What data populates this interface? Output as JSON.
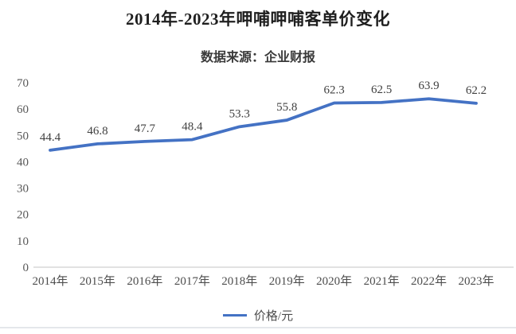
{
  "chart_data": {
    "type": "line",
    "title": "2014年-2023年呷哺呷哺客单价变化",
    "subtitle": "数据来源：企业财报",
    "categories": [
      "2014年",
      "2015年",
      "2016年",
      "2017年",
      "2018年",
      "2019年",
      "2020年",
      "2021年",
      "2022年",
      "2023年"
    ],
    "series": [
      {
        "name": "价格/元",
        "values": [
          44.4,
          46.8,
          47.7,
          48.4,
          53.3,
          55.8,
          62.3,
          62.5,
          63.9,
          62.2
        ],
        "color": "#4472C4"
      }
    ],
    "xlabel": "",
    "ylabel": "",
    "ylim": [
      0,
      70
    ],
    "yticks": [
      0,
      10,
      20,
      30,
      40,
      50,
      60,
      70
    ],
    "grid": false,
    "data_labels": true,
    "legend_position": "bottom"
  },
  "legend": {
    "label": "价格/元",
    "swatch_color": "#4472C4"
  },
  "colors": {
    "line": "#4472C4",
    "axis_line": "#d9d9d9",
    "ytick_text": "#595959",
    "xtick_text": "#4d4d4d",
    "data_label_text": "#404040",
    "title_text": "#1f1f1f"
  }
}
